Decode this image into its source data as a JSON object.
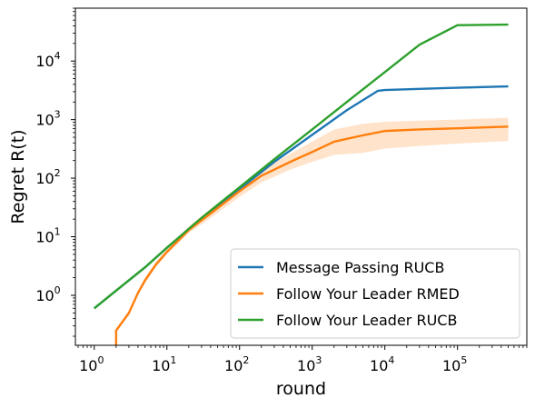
{
  "chart_data": {
    "type": "line",
    "title": "",
    "xlabel": "round",
    "ylabel": "Regret R(t)",
    "xscale": "log",
    "yscale": "log",
    "xlim": [
      0.55,
      900000
    ],
    "ylim": [
      0.14,
      80000
    ],
    "x_ticks": [
      {
        "value": 1,
        "base": "10",
        "exp": "0"
      },
      {
        "value": 10,
        "base": "10",
        "exp": "1"
      },
      {
        "value": 100,
        "base": "10",
        "exp": "2"
      },
      {
        "value": 1000,
        "base": "10",
        "exp": "3"
      },
      {
        "value": 10000,
        "base": "10",
        "exp": "4"
      },
      {
        "value": 100000,
        "base": "10",
        "exp": "5"
      }
    ],
    "y_ticks": [
      {
        "value": 1,
        "base": "10",
        "exp": "0"
      },
      {
        "value": 10,
        "base": "10",
        "exp": "1"
      },
      {
        "value": 100,
        "base": "10",
        "exp": "2"
      },
      {
        "value": 1000,
        "base": "10",
        "exp": "3"
      },
      {
        "value": 10000,
        "base": "10",
        "exp": "4"
      }
    ],
    "grid": false,
    "legend_position": "bottom-right",
    "series": [
      {
        "name": "Message Passing RUCB",
        "color": "#1f77b4",
        "x": [
          1,
          2,
          5,
          10,
          30,
          100,
          300,
          1000,
          3000,
          8000,
          10000,
          30000,
          100000,
          500000
        ],
        "y": [
          0.6,
          1.2,
          3.0,
          6.5,
          20,
          65,
          190,
          550,
          1450,
          3100,
          3200,
          3350,
          3500,
          3700
        ],
        "band_low": [
          0.58,
          1.15,
          2.9,
          6.3,
          19.5,
          63,
          185,
          535,
          1400,
          3000,
          3100,
          3250,
          3380,
          3550
        ],
        "band_high": [
          0.62,
          1.25,
          3.1,
          6.7,
          20.5,
          67,
          195,
          565,
          1500,
          3200,
          3300,
          3450,
          3620,
          3850
        ]
      },
      {
        "name": "Follow Your Leader RMED",
        "color": "#ff7f0e",
        "x": [
          2,
          2,
          3,
          4,
          5,
          7,
          10,
          20,
          40,
          100,
          200,
          500,
          1000,
          2000,
          5000,
          10000,
          30000,
          100000,
          500000
        ],
        "y": [
          0.14,
          0.25,
          0.5,
          1.1,
          1.8,
          3.3,
          5.5,
          13,
          25,
          60,
          110,
          190,
          280,
          420,
          540,
          640,
          680,
          710,
          760
        ],
        "band_low": [
          0.14,
          0.24,
          0.45,
          1.0,
          1.6,
          3.0,
          5.0,
          11.5,
          21,
          48,
          85,
          140,
          190,
          250,
          270,
          320,
          355,
          390,
          430
        ],
        "band_high": [
          0.14,
          0.27,
          0.55,
          1.2,
          2.0,
          3.7,
          6.2,
          15,
          30,
          73,
          140,
          260,
          420,
          680,
          850,
          920,
          960,
          1000,
          1080
        ]
      },
      {
        "name": "Follow Your Leader RUCB",
        "color": "#2ca02c",
        "x": [
          1,
          2,
          5,
          10,
          30,
          100,
          300,
          1000,
          3000,
          10000,
          30000,
          100000,
          500000
        ],
        "y": [
          0.6,
          1.2,
          3.0,
          6.5,
          21,
          70,
          210,
          680,
          2000,
          6500,
          19000,
          41000,
          42000
        ],
        "band_low": [],
        "band_high": []
      }
    ]
  }
}
